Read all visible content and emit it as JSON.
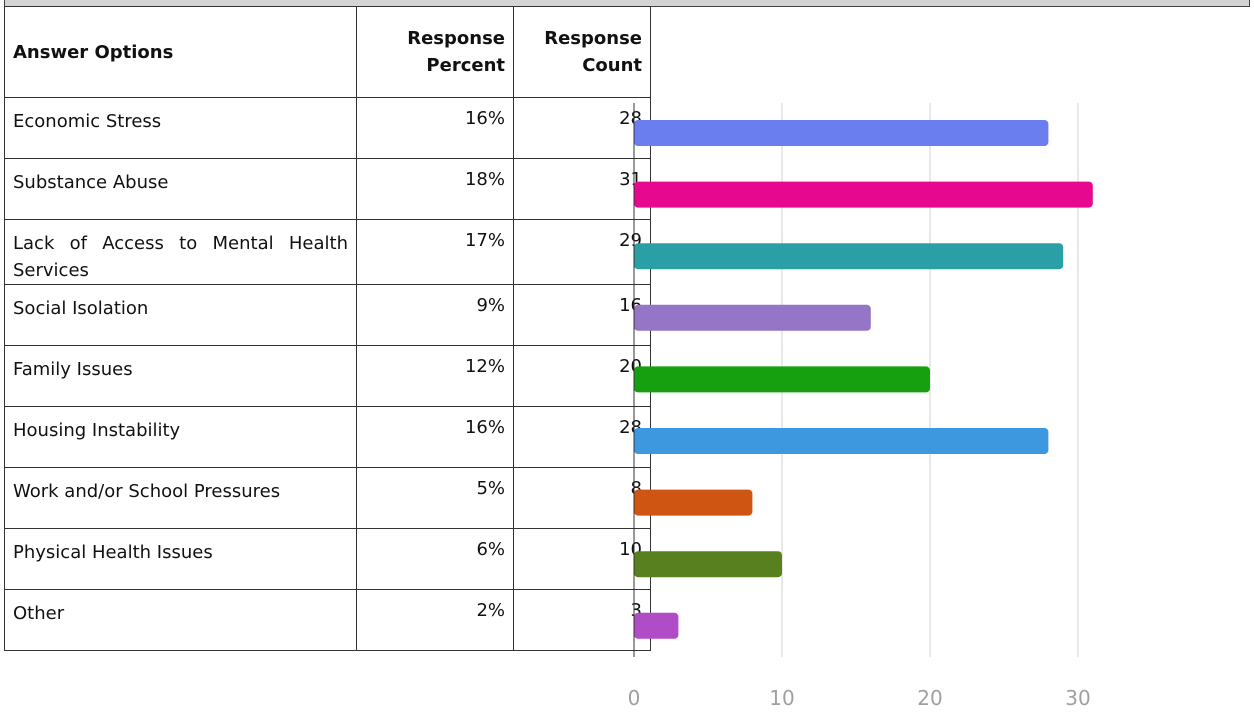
{
  "table": {
    "headers": {
      "option": "Answer Options",
      "percent": [
        "Response",
        "Percent"
      ],
      "count": [
        "Response",
        "Count"
      ]
    },
    "rows": [
      {
        "option": "Economic Stress",
        "percent": "16%",
        "count": "28"
      },
      {
        "option": "Substance Abuse",
        "percent": "18%",
        "count": "31"
      },
      {
        "option": "Lack of Access to Mental Health Services",
        "percent": "17%",
        "count": "29"
      },
      {
        "option": "Social Isolation",
        "percent": "9%",
        "count": "16"
      },
      {
        "option": "Family Issues",
        "percent": "12%",
        "count": "20"
      },
      {
        "option": "Housing Instability",
        "percent": "16%",
        "count": "28"
      },
      {
        "option": "Work and/or School Pressures",
        "percent": "5%",
        "count": "8"
      },
      {
        "option": "Physical Health Issues",
        "percent": "6%",
        "count": "10"
      },
      {
        "option": "Other",
        "percent": "2%",
        "count": "3"
      }
    ]
  },
  "chart_data": {
    "type": "bar",
    "orientation": "horizontal",
    "categories": [
      "Economic Stress",
      "Substance Abuse",
      "Lack of Access to Mental Health Services",
      "Social Isolation",
      "Family Issues",
      "Housing Instability",
      "Work and/or School Pressures",
      "Physical Health Issues",
      "Other"
    ],
    "values": [
      28,
      31,
      29,
      16,
      20,
      28,
      8,
      10,
      3
    ],
    "colors": [
      "#6b7ef0",
      "#e6088f",
      "#2aa0a6",
      "#9575c6",
      "#16a010",
      "#3d98e0",
      "#cf5512",
      "#58801e",
      "#b04cc6"
    ],
    "xlim": [
      0,
      40
    ],
    "xticks": [
      "0",
      "10",
      "20",
      "30"
    ],
    "grid": true
  }
}
